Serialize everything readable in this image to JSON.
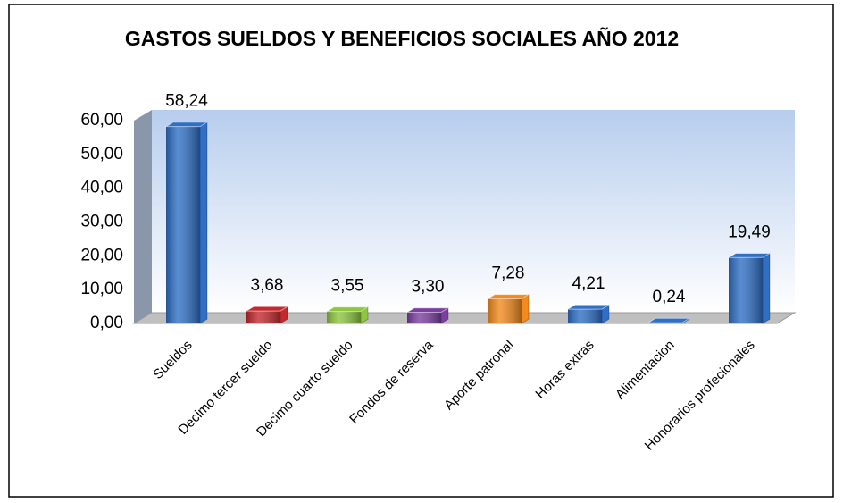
{
  "chart_data": {
    "type": "bar3d",
    "title": "GASTOS SUELDOS Y BENEFICIOS SOCIALES AÑO 2012",
    "categories": [
      "Sueldos",
      "Decimo tercer sueldo",
      "Decimo cuarto sueldo",
      "Fondos de reserva",
      "Aporte patronal",
      "Horas extras",
      "Alimentacion",
      "Honorarios profecionales"
    ],
    "values": [
      58.24,
      3.68,
      3.55,
      3.3,
      7.28,
      4.21,
      0.24,
      19.49
    ],
    "value_labels": [
      "58,24",
      "3,68",
      "3,55",
      "3,30",
      "7,28",
      "4,21",
      "0,24",
      "19,49"
    ],
    "colors": [
      "#2f6fc6",
      "#c4292e",
      "#8dc63f",
      "#7b3fa1",
      "#f28a1d",
      "#2f6fc6",
      "#2f6fc6",
      "#2f6fc6"
    ],
    "ylim": [
      0,
      60
    ],
    "yticks": [
      {
        "value": 0,
        "label": "0,00"
      },
      {
        "value": 10,
        "label": "10,00"
      },
      {
        "value": 20,
        "label": "20,00"
      },
      {
        "value": 30,
        "label": "30,00"
      },
      {
        "value": 40,
        "label": "40,00"
      },
      {
        "value": 50,
        "label": "50,00"
      },
      {
        "value": 60,
        "label": "60,00"
      }
    ],
    "grid": false
  }
}
